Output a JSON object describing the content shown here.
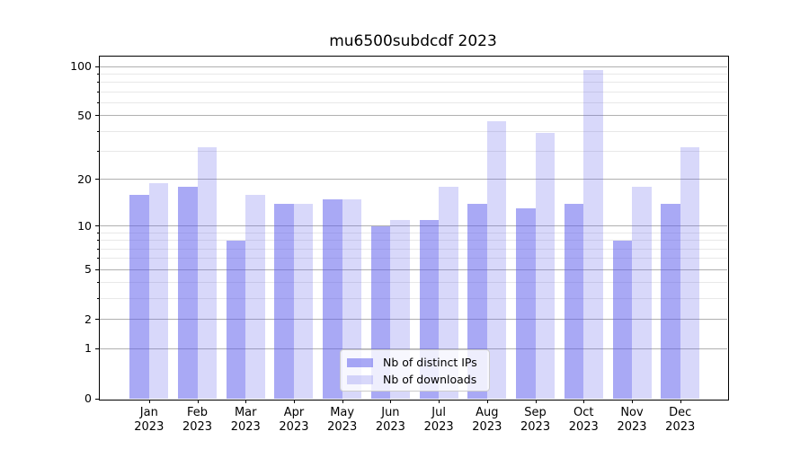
{
  "chart_data": {
    "type": "bar",
    "title": "mu6500subdcdf 2023",
    "categories": [
      "Jan",
      "Feb",
      "Mar",
      "Apr",
      "May",
      "Jun",
      "Jul",
      "Aug",
      "Sep",
      "Oct",
      "Nov",
      "Dec"
    ],
    "year_label": "2023",
    "series": [
      {
        "name": "Nb of distinct IPs",
        "values": [
          16,
          18,
          8,
          14,
          15,
          10,
          11,
          14,
          13,
          14,
          8,
          14
        ],
        "color": "rgba(90,90,235,0.52)"
      },
      {
        "name": "Nb of downloads",
        "values": [
          19,
          32,
          16,
          14,
          15,
          11,
          18,
          46,
          39,
          95,
          18,
          32
        ],
        "color": "rgba(90,90,235,0.24)"
      }
    ],
    "yscale": "log1p",
    "ylim": [
      0,
      110
    ],
    "yticks_major": [
      0,
      1,
      2,
      5,
      10,
      20,
      50,
      100
    ],
    "yticks_minor": [
      3,
      4,
      6,
      7,
      8,
      9,
      30,
      40,
      60,
      70,
      80,
      90
    ],
    "grid": true,
    "legend_position": "lower center",
    "colors": {
      "grid_major": "#b0b0b0",
      "grid_minor": "#e8e8e8",
      "spine": "#000000",
      "text": "#000000"
    }
  }
}
